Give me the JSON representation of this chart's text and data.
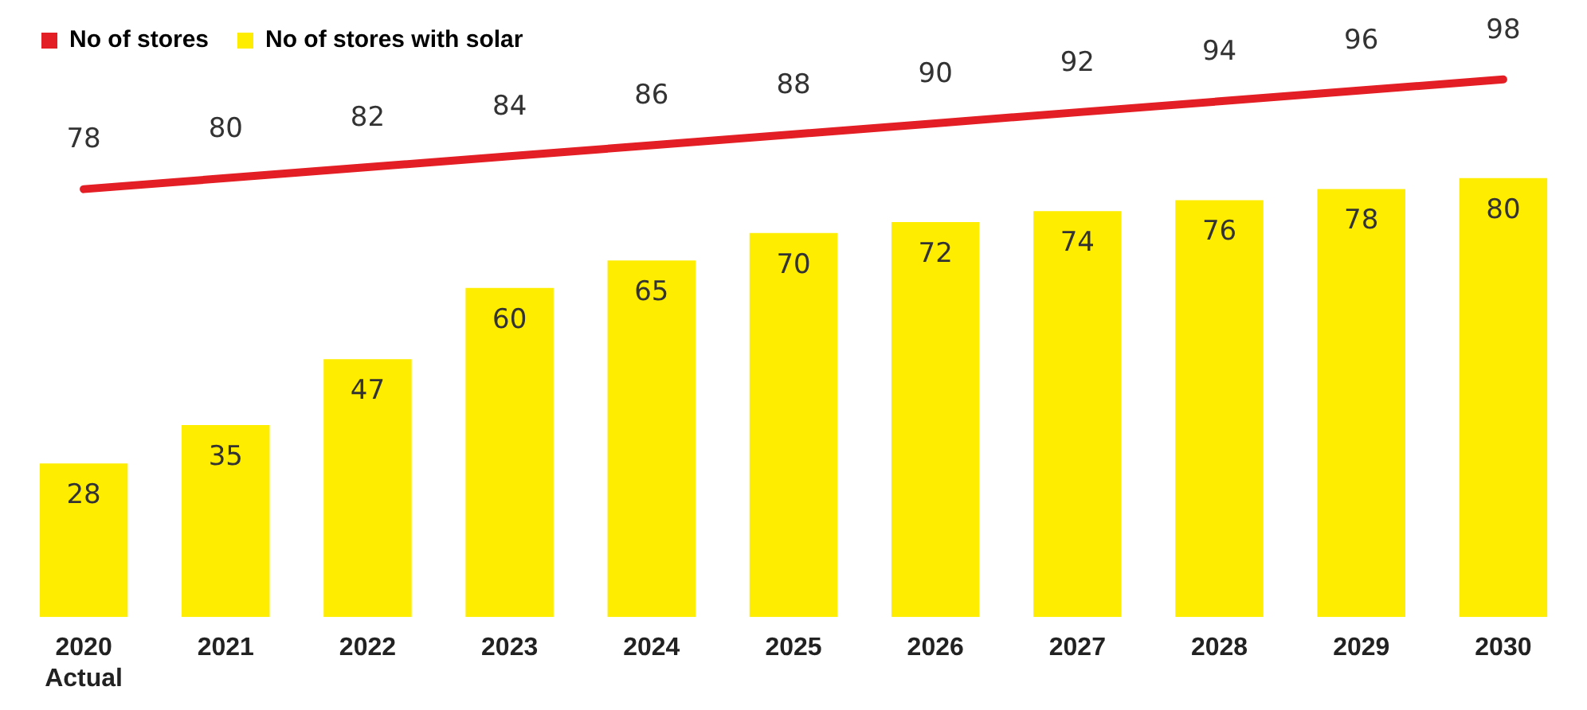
{
  "chart_data": {
    "type": "bar",
    "categories": [
      "2020 Actual",
      "2021",
      "2022",
      "2023",
      "2024",
      "2025",
      "2026",
      "2027",
      "2028",
      "2029",
      "2030"
    ],
    "series": [
      {
        "name": "No of stores",
        "type": "line",
        "color": "#e31e24",
        "values": [
          78,
          80,
          82,
          84,
          86,
          88,
          90,
          92,
          94,
          96,
          98
        ]
      },
      {
        "name": "No of stores with solar",
        "color": "#ffed00",
        "values": [
          28,
          35,
          47,
          60,
          65,
          70,
          72,
          74,
          76,
          78,
          80
        ]
      }
    ],
    "data_labels": true,
    "legend": "top left",
    "grid": false,
    "marker": "none"
  }
}
